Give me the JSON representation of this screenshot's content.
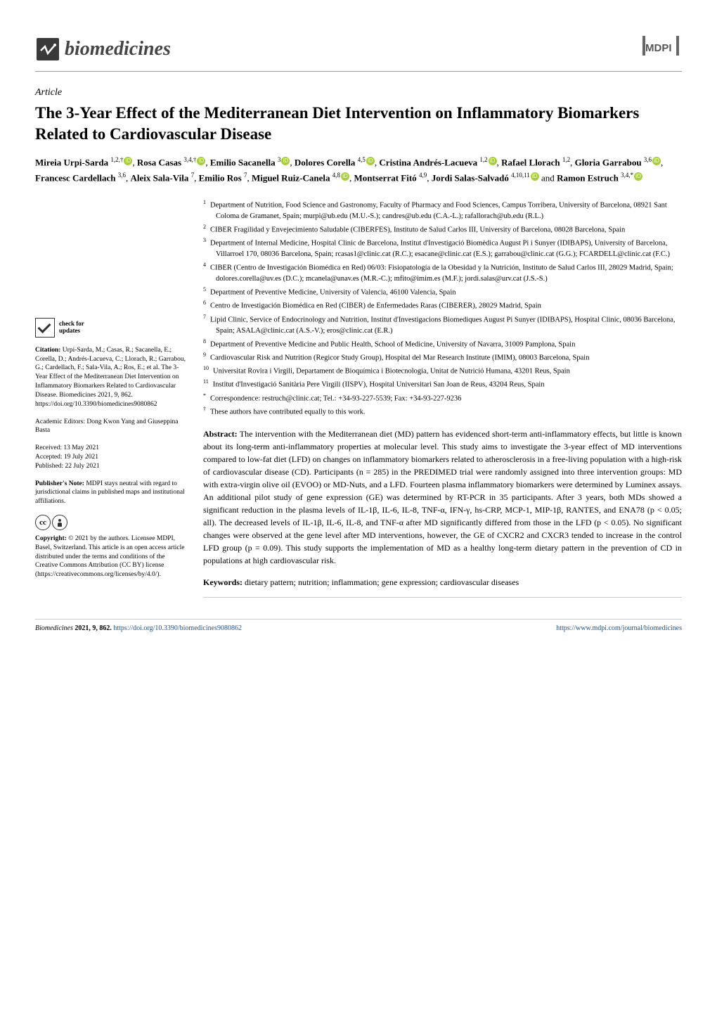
{
  "header": {
    "journal_name": "biomedicines",
    "publisher_logo": "MDPI"
  },
  "article": {
    "type": "Article",
    "title": "The 3-Year Effect of the Mediterranean Diet Intervention on Inflammatory Biomarkers Related to Cardiovascular Disease",
    "authors_html": "Mireia Urpi-Sarda 1,2,†, Rosa Casas 3,4,†, Emilio Sacanella 3, Dolores Corella 4,5, Cristina Andrés-Lacueva 1,2, Rafael Llorach 1,2, Gloria Garrabou 3,6, Francesc Cardellach 3,6, Aleix Sala-Vila 7, Emilio Ros 7, Miguel Ruiz-Canela 4,8, Montserrat Fitó 4,9, Jordi Salas-Salvadó 4,10,11 and Ramon Estruch 3,4,*",
    "authors": [
      {
        "name": "Mireia Urpi-Sarda",
        "sup": "1,2,†",
        "orcid": true
      },
      {
        "name": "Rosa Casas",
        "sup": "3,4,†",
        "orcid": true
      },
      {
        "name": "Emilio Sacanella",
        "sup": "3",
        "orcid": true
      },
      {
        "name": "Dolores Corella",
        "sup": "4,5",
        "orcid": true
      },
      {
        "name": "Cristina Andrés-Lacueva",
        "sup": "1,2",
        "orcid": true
      },
      {
        "name": "Rafael Llorach",
        "sup": "1,2",
        "orcid": false
      },
      {
        "name": "Gloria Garrabou",
        "sup": "3,6",
        "orcid": true
      },
      {
        "name": "Francesc Cardellach",
        "sup": "3,6",
        "orcid": false
      },
      {
        "name": "Aleix Sala-Vila",
        "sup": "7",
        "orcid": false
      },
      {
        "name": "Emilio Ros",
        "sup": "7",
        "orcid": false
      },
      {
        "name": "Miguel Ruiz-Canela",
        "sup": "4,8",
        "orcid": true
      },
      {
        "name": "Montserrat Fitó",
        "sup": "4,9",
        "orcid": false
      },
      {
        "name": "Jordi Salas-Salvadó",
        "sup": "4,10,11",
        "orcid": true
      },
      {
        "name": "Ramon Estruch",
        "sup": "3,4,*",
        "orcid": true
      }
    ],
    "affiliations": [
      {
        "num": "1",
        "text": "Department of Nutrition, Food Science and Gastronomy, Faculty of Pharmacy and Food Sciences, Campus Torribera, University of Barcelona, 08921 Sant Coloma de Gramanet, Spain; murpi@ub.edu (M.U.-S.); candres@ub.edu (C.A.-L.); rafallorach@ub.edu (R.L.)"
      },
      {
        "num": "2",
        "text": "CIBER Fragilidad y Envejecimiento Saludable (CIBERFES), Instituto de Salud Carlos III, University of Barcelona, 08028 Barcelona, Spain"
      },
      {
        "num": "3",
        "text": "Department of Internal Medicine, Hospital Clinic de Barcelona, Institut d'Investigació Biomèdica August Pi i Sunyer (IDIBAPS), University of Barcelona, Villarroel 170, 08036 Barcelona, Spain; rcasas1@clinic.cat (R.C.); esacane@clinic.cat (E.S.); garrabou@clinic.cat (G.G.); FCARDELL@clinic.cat (F.C.)"
      },
      {
        "num": "4",
        "text": "CIBER (Centro de Investigación Biomédica en Red) 06/03: Fisiopatología de la Obesidad y la Nutrición, Instituto de Salud Carlos III, 28029 Madrid, Spain; dolores.corella@uv.es (D.C.); mcanela@unav.es (M.R.-C.); mfito@imim.es (M.F.); jordi.salas@urv.cat (J.S.-S.)"
      },
      {
        "num": "5",
        "text": "Department of Preventive Medicine, University of Valencia, 46100 Valencia, Spain"
      },
      {
        "num": "6",
        "text": "Centro de Investigación Biomédica en Red (CIBER) de Enfermedades Raras (CIBERER), 28029 Madrid, Spain"
      },
      {
        "num": "7",
        "text": "Lipid Clinic, Service of Endocrinology and Nutrition, Institut d'Investigacions Biomediques August Pi Sunyer (IDIBAPS), Hospital Clinic, 08036 Barcelona, Spain; ASALA@clinic.cat (A.S.-V.); eros@clinic.cat (E.R.)"
      },
      {
        "num": "8",
        "text": "Department of Preventive Medicine and Public Health, School of Medicine, University of Navarra, 31009 Pamplona, Spain"
      },
      {
        "num": "9",
        "text": "Cardiovascular Risk and Nutrition (Regicor Study Group), Hospital del Mar Research Institute (IMIM), 08003 Barcelona, Spain"
      },
      {
        "num": "10",
        "text": "Universitat Rovira i Virgili, Departament de Bioquímica i Biotecnologia, Unitat de Nutrició Humana, 43201 Reus, Spain"
      },
      {
        "num": "11",
        "text": "Institut d'Investigació Sanitària Pere Virgili (IISPV), Hospital Universitari San Joan de Reus, 43204 Reus, Spain"
      },
      {
        "num": "*",
        "text": "Correspondence: restruch@clinic.cat; Tel.: +34-93-227-5539; Fax: +34-93-227-9236"
      },
      {
        "num": "†",
        "text": "These authors have contributed equally to this work."
      }
    ],
    "abstract_label": "Abstract:",
    "abstract": "The intervention with the Mediterranean diet (MD) pattern has evidenced short-term anti-inflammatory effects, but little is known about its long-term anti-inflammatory properties at molecular level. This study aims to investigate the 3-year effect of MD interventions compared to low-fat diet (LFD) on changes on inflammatory biomarkers related to atherosclerosis in a free-living population with a high-risk of cardiovascular disease (CD). Participants (n = 285) in the PREDIMED trial were randomly assigned into three intervention groups: MD with extra-virgin olive oil (EVOO) or MD-Nuts, and a LFD. Fourteen plasma inflammatory biomarkers were determined by Luminex assays. An additional pilot study of gene expression (GE) was determined by RT-PCR in 35 participants. After 3 years, both MDs showed a significant reduction in the plasma levels of IL-1β, IL-6, IL-8, TNF-α, IFN-γ, hs-CRP, MCP-1, MIP-1β, RANTES, and ENA78 (p < 0.05; all). The decreased levels of IL-1β, IL-6, IL-8, and TNF-α after MD significantly differed from those in the LFD (p < 0.05). No significant changes were observed at the gene level after MD interventions, however, the GE of CXCR2 and CXCR3 tended to increase in the control LFD group (p = 0.09). This study supports the implementation of MD as a healthy long-term dietary pattern in the prevention of CD in populations at high cardiovascular risk.",
    "keywords_label": "Keywords:",
    "keywords": "dietary pattern; nutrition; inflammation; gene expression; cardiovascular diseases"
  },
  "sidebar": {
    "check_updates_label": "check for\nupdates",
    "citation_label": "Citation:",
    "citation": "Urpi-Sarda, M.; Casas, R.; Sacanella, E.; Corella, D.; Andrés-Lacueva, C.; Llorach, R.; Garrabou, G.; Cardellach, F.; Sala-Vila, A.; Ros, E.; et al. The 3-Year Effect of the Mediterranean Diet Intervention on Inflammatory Biomarkers Related to Cardiovascular Disease. Biomedicines 2021, 9, 862. https://doi.org/10.3390/biomedicines9080862",
    "editors_label": "Academic Editors:",
    "editors": "Dong Kwon Yang and Giuseppina Basta",
    "received_label": "Received:",
    "received": "13 May 2021",
    "accepted_label": "Accepted:",
    "accepted": "19 July 2021",
    "published_label": "Published:",
    "published": "22 July 2021",
    "publishers_note_label": "Publisher's Note:",
    "publishers_note": "MDPI stays neutral with regard to jurisdictional claims in published maps and institutional affiliations.",
    "copyright_label": "Copyright:",
    "copyright": "© 2021 by the authors. Licensee MDPI, Basel, Switzerland. This article is an open access article distributed under the terms and conditions of the Creative Commons Attribution (CC BY) license (https://creativecommons.org/licenses/by/4.0/).",
    "cc_symbols": [
      "CC",
      "①"
    ]
  },
  "footer": {
    "left": "Biomedicines 2021, 9, 862. https://doi.org/10.3390/biomedicines9080862",
    "left_journal": "Biomedicines",
    "left_year_vol": "2021, 9, 862.",
    "left_doi": "https://doi.org/10.3390/biomedicines9080862",
    "right": "https://www.mdpi.com/journal/biomedicines"
  },
  "colors": {
    "orcid_green": "#a6ce39",
    "link_blue": "#1a5490",
    "text": "#000000",
    "background": "#ffffff",
    "border_gray": "#cccccc"
  }
}
